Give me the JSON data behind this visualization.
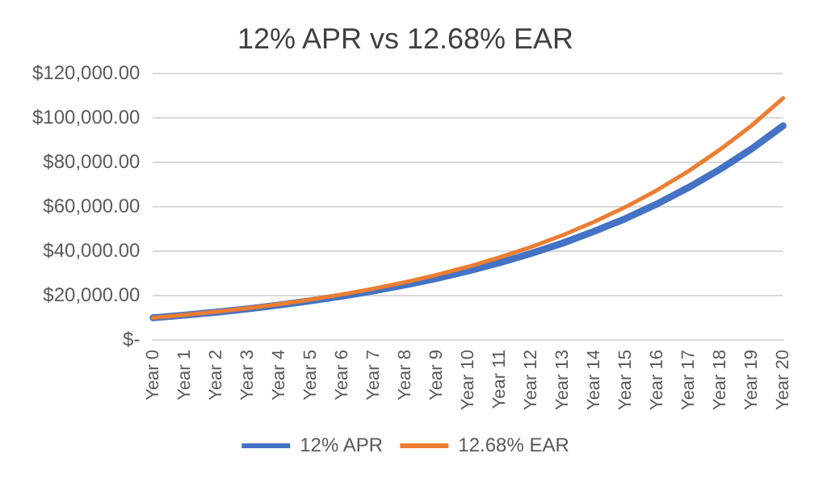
{
  "chart_data": {
    "type": "line",
    "title": "12% APR vs 12.68% EAR",
    "categories": [
      "Year 0",
      "Year 1",
      "Year 2",
      "Year 3",
      "Year 4",
      "Year 5",
      "Year 6",
      "Year 7",
      "Year 8",
      "Year 9",
      "Year 10",
      "Year 11",
      "Year 12",
      "Year 13",
      "Year 14",
      "Year 15",
      "Year 16",
      "Year 17",
      "Year 18",
      "Year 19",
      "Year 20"
    ],
    "series": [
      {
        "name": "12% APR",
        "color": "#4472c4",
        "values": [
          10000,
          11200,
          12500,
          14000,
          15700,
          17600,
          19700,
          22100,
          24800,
          27700,
          31100,
          34800,
          39000,
          43600,
          48900,
          54700,
          61300,
          68700,
          76900,
          86100,
          96500
        ]
      },
      {
        "name": "12.68% EAR",
        "color": "#ed7d31",
        "values": [
          10000,
          11300,
          12700,
          14300,
          16100,
          18200,
          20500,
          23100,
          26000,
          29300,
          33000,
          37200,
          41900,
          47200,
          53200,
          59900,
          67500,
          76100,
          85800,
          96600,
          108900
        ]
      }
    ],
    "ylim": [
      0,
      120000
    ],
    "yticks": [
      {
        "value": 0,
        "label": "$-"
      },
      {
        "value": 20000,
        "label": "$20,000.00"
      },
      {
        "value": 40000,
        "label": "$40,000.00"
      },
      {
        "value": 60000,
        "label": "$60,000.00"
      },
      {
        "value": 80000,
        "label": "$80,000.00"
      },
      {
        "value": 100000,
        "label": "$100,000.00"
      },
      {
        "value": 120000,
        "label": "$120,000.00"
      }
    ],
    "grid": "y",
    "legend": "bottom",
    "marker": "none",
    "line_style": "solid"
  }
}
